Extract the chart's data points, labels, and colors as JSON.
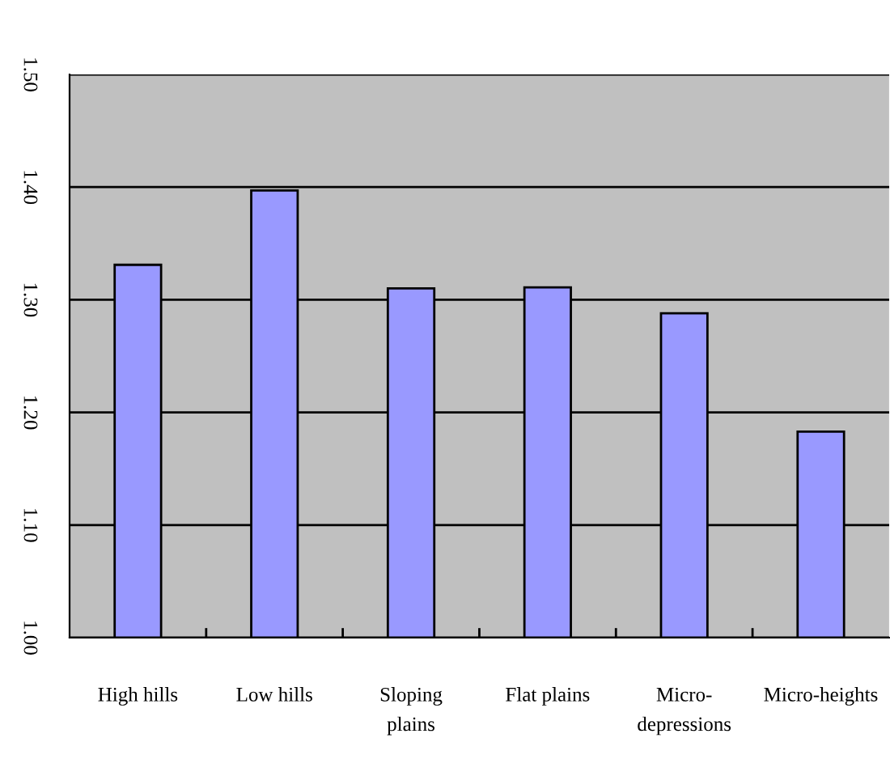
{
  "chart_data": {
    "type": "bar",
    "categories": [
      "High hills",
      "Low hills",
      "Sloping\nplains",
      "Flat plains",
      "Micro-\ndepressions",
      "Micro-heights"
    ],
    "values": [
      1.331,
      1.397,
      1.31,
      1.311,
      1.288,
      1.183
    ],
    "color": "#9999ff",
    "ylim": [
      1.0,
      1.5
    ],
    "yticks": [
      {
        "value": 1.0,
        "label": "1.00"
      },
      {
        "value": 1.1,
        "label": "1.10"
      },
      {
        "value": 1.2,
        "label": "1.20"
      },
      {
        "value": 1.3,
        "label": "1.30"
      },
      {
        "value": 1.4,
        "label": "1.40"
      },
      {
        "value": 1.5,
        "label": "1.50"
      }
    ],
    "grid": "y"
  }
}
